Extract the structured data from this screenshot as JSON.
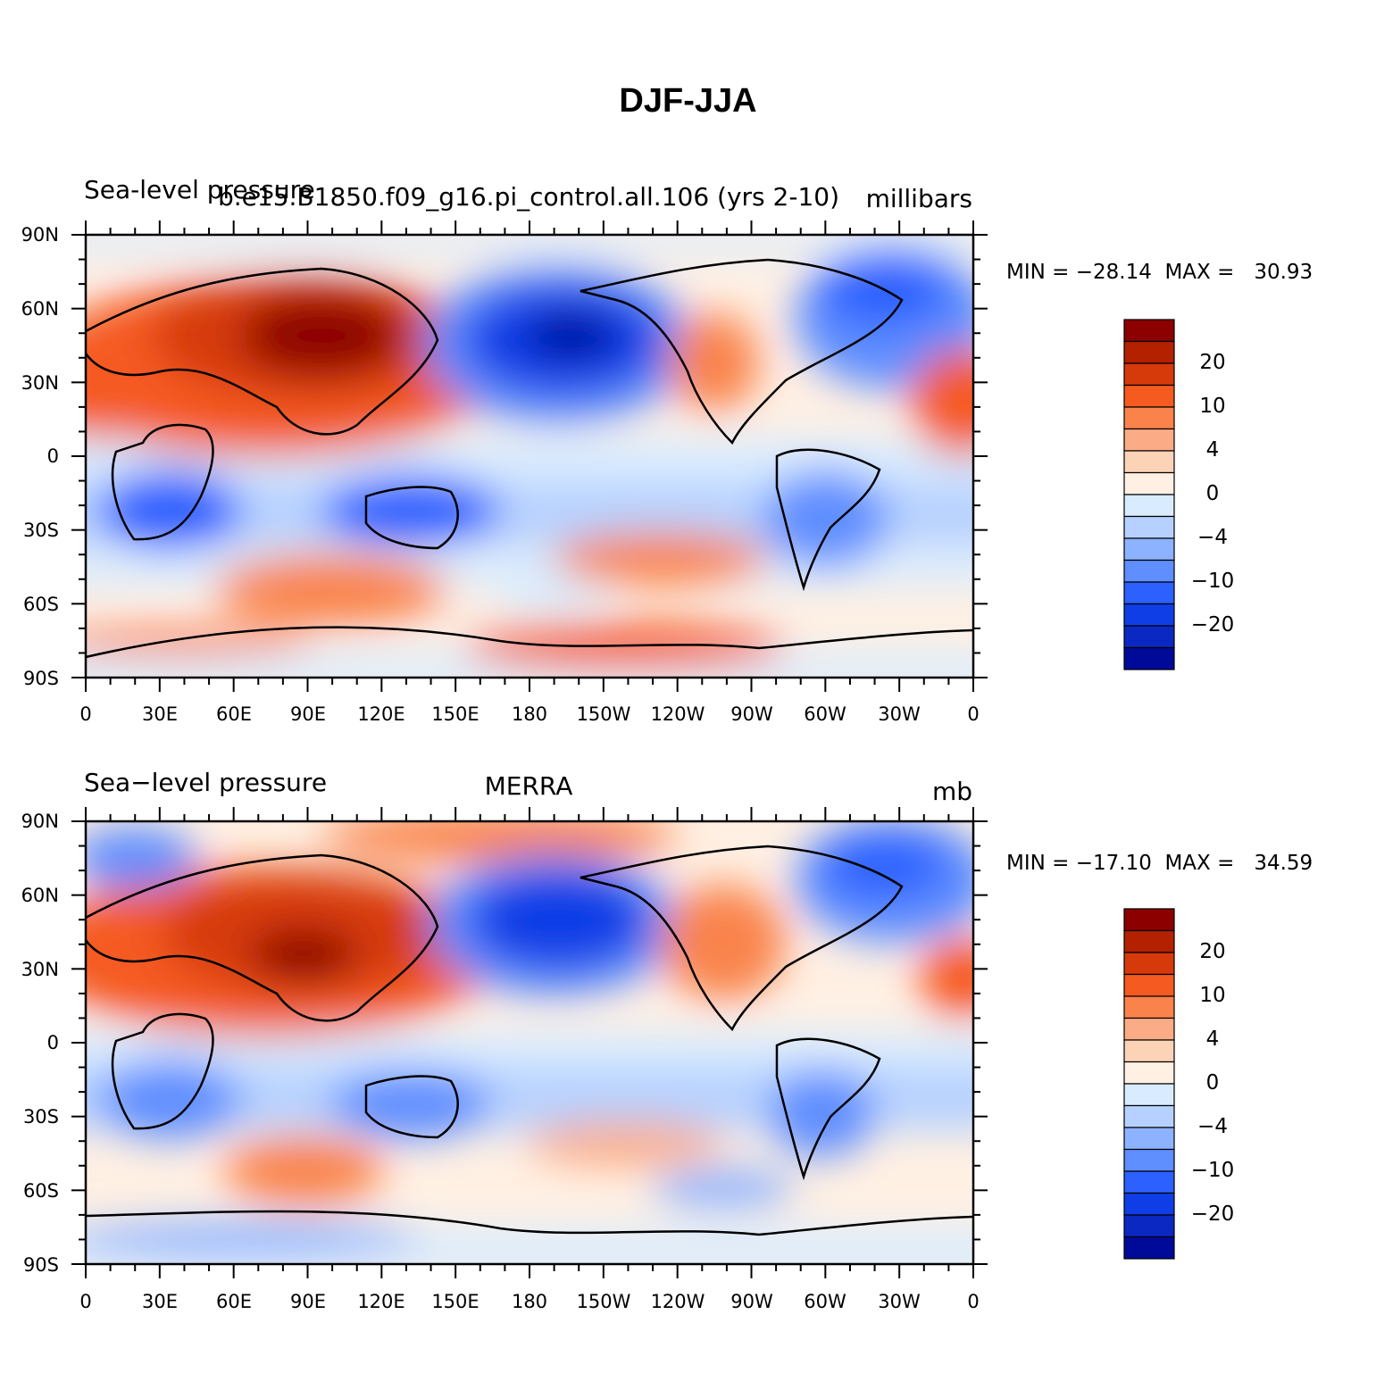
{
  "title": "DJF-JJA",
  "panels": [
    {
      "id": "top",
      "left_label": "Sea-level pressure",
      "center_label": "b.e15.B1850.f09_g16.pi_control.all.106 (yrs 2-10)",
      "right_label": "millibars",
      "minmax": "MIN = −28.14  MAX =   30.93"
    },
    {
      "id": "bottom",
      "left_label": "Sea−level pressure",
      "center_label": "MERRA",
      "right_label": "mb",
      "minmax": "MIN = −17.10  MAX =   34.59"
    }
  ],
  "lat_ticks": [
    "90N",
    "60N",
    "30N",
    "0",
    "30S",
    "60S",
    "90S"
  ],
  "lon_ticks": [
    "0",
    "30E",
    "60E",
    "90E",
    "120E",
    "150E",
    "180",
    "150W",
    "120W",
    "90W",
    "60W",
    "30W",
    "0"
  ],
  "colorbar": {
    "colors": [
      "#8c0000",
      "#b32100",
      "#d63a0b",
      "#f55a21",
      "#f9834b",
      "#fbac86",
      "#fdd3b8",
      "#fff0e3",
      "#d9ecff",
      "#b6d1ff",
      "#8db2ff",
      "#5e8eff",
      "#2c60ff",
      "#0f3ee6",
      "#0b29c2",
      "#000a99"
    ],
    "labels": [
      "20",
      "10",
      "4",
      "0",
      "−4",
      "−10",
      "−20"
    ]
  }
}
